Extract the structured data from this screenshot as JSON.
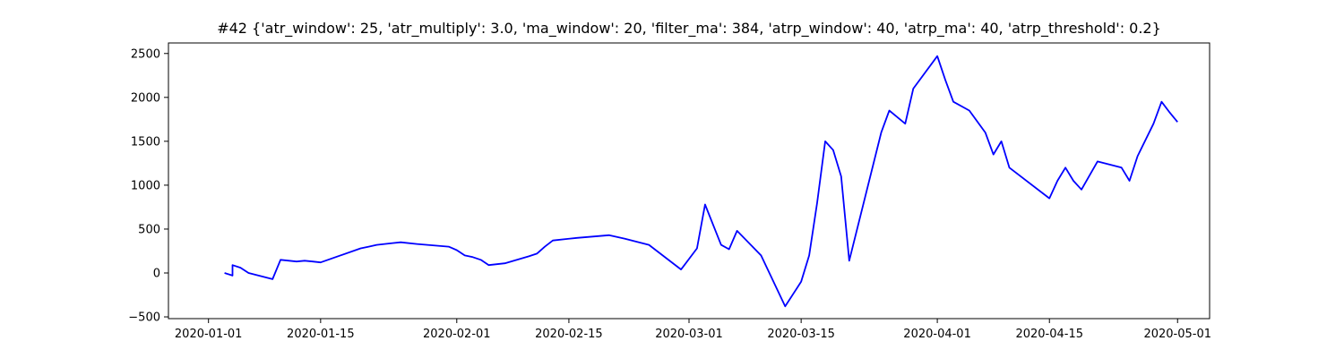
{
  "chart_data": {
    "type": "line",
    "title": "#42 {'atr_window': 25, 'atr_multiply': 3.0, 'ma_window': 20, 'filter_ma': 384, 'atrp_window': 40, 'atrp_ma': 40, 'atrp_threshold': 0.2}",
    "xlabel": "",
    "ylabel": "",
    "xlim": [
      "2019-12-27",
      "2020-05-05"
    ],
    "ylim": [
      -520,
      2620
    ],
    "grid": false,
    "x_ticks": [
      "2020-01-01",
      "2020-01-15",
      "2020-02-01",
      "2020-02-15",
      "2020-03-01",
      "2020-03-15",
      "2020-04-01",
      "2020-04-15",
      "2020-05-01"
    ],
    "y_ticks": [
      -500,
      0,
      500,
      1000,
      1500,
      2000,
      2500
    ],
    "line_color": "#0000ff",
    "series": [
      {
        "x": [
          "2020-01-03",
          "2020-01-04",
          "2020-01-04",
          "2020-01-05",
          "2020-01-06",
          "2020-01-09",
          "2020-01-10",
          "2020-01-12",
          "2020-01-13",
          "2020-01-14",
          "2020-01-15",
          "2020-01-20",
          "2020-01-21",
          "2020-01-22",
          "2020-01-24",
          "2020-01-25",
          "2020-01-27",
          "2020-01-31",
          "2020-02-01",
          "2020-02-02",
          "2020-02-03",
          "2020-02-04",
          "2020-02-05",
          "2020-02-07",
          "2020-02-10",
          "2020-02-11",
          "2020-02-12",
          "2020-02-13",
          "2020-02-16",
          "2020-02-20",
          "2020-02-22",
          "2020-02-25",
          "2020-02-29",
          "2020-03-02",
          "2020-03-03",
          "2020-03-05",
          "2020-03-06",
          "2020-03-07",
          "2020-03-10",
          "2020-03-13",
          "2020-03-15",
          "2020-03-16",
          "2020-03-17",
          "2020-03-18",
          "2020-03-19",
          "2020-03-20",
          "2020-03-21",
          "2020-03-25",
          "2020-03-26",
          "2020-03-28",
          "2020-03-29",
          "2020-04-01",
          "2020-04-02",
          "2020-04-03",
          "2020-04-05",
          "2020-04-07",
          "2020-04-08",
          "2020-04-09",
          "2020-04-10",
          "2020-04-15",
          "2020-04-16",
          "2020-04-17",
          "2020-04-18",
          "2020-04-19",
          "2020-04-21",
          "2020-04-24",
          "2020-04-25",
          "2020-04-26",
          "2020-04-28",
          "2020-04-29",
          "2020-04-30",
          "2020-05-01"
        ],
        "y": [
          0,
          -30,
          90,
          60,
          0,
          -70,
          150,
          130,
          140,
          130,
          120,
          280,
          300,
          320,
          340,
          350,
          330,
          300,
          260,
          200,
          180,
          150,
          90,
          110,
          190,
          220,
          300,
          370,
          400,
          430,
          390,
          320,
          40,
          280,
          780,
          320,
          270,
          480,
          200,
          -380,
          -100,
          200,
          800,
          1500,
          1400,
          1100,
          140,
          1600,
          1850,
          1700,
          2100,
          2470,
          2200,
          1950,
          1850,
          1600,
          1350,
          1500,
          1200,
          850,
          1050,
          1200,
          1050,
          950,
          1270,
          1200,
          1050,
          1330,
          1700,
          1950,
          1830,
          1720
        ]
      }
    ]
  }
}
